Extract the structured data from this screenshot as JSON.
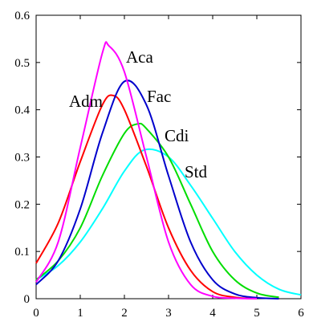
{
  "chart_data": {
    "type": "line",
    "title": "",
    "xlabel": "",
    "ylabel": "",
    "xlim": [
      0,
      6
    ],
    "ylim": [
      0,
      0.6
    ],
    "x_ticks": [
      "0",
      "1",
      "2",
      "3",
      "4",
      "5",
      "6"
    ],
    "y_ticks": [
      "0",
      "0.1",
      "0.2",
      "0.3",
      "0.4",
      "0.5",
      "0.6"
    ],
    "grid": false,
    "legend": "none",
    "series": [
      {
        "name": "Aca",
        "color": "#ff00ff",
        "x": [
          0,
          0.5,
          1,
          1.5,
          1.65,
          2,
          2.5,
          3,
          3.5,
          4,
          4.5,
          5
        ],
        "y": [
          0.035,
          0.12,
          0.32,
          0.52,
          0.535,
          0.48,
          0.3,
          0.12,
          0.03,
          0.005,
          0.001,
          0
        ]
      },
      {
        "name": "Adm",
        "color": "#ff0000",
        "x": [
          0,
          0.5,
          1,
          1.5,
          1.75,
          2,
          2.5,
          3,
          3.5,
          4,
          4.5,
          5
        ],
        "y": [
          0.075,
          0.16,
          0.29,
          0.41,
          0.43,
          0.4,
          0.28,
          0.15,
          0.06,
          0.015,
          0.003,
          0
        ]
      },
      {
        "name": "Fac",
        "color": "#0000cc",
        "x": [
          0,
          0.5,
          1,
          1.5,
          2,
          2.5,
          3,
          3.5,
          4,
          4.5,
          5,
          5.5
        ],
        "y": [
          0.03,
          0.08,
          0.19,
          0.35,
          0.46,
          0.41,
          0.26,
          0.12,
          0.04,
          0.01,
          0.002,
          0
        ]
      },
      {
        "name": "Cdi",
        "color": "#00dd00",
        "x": [
          0,
          0.5,
          1,
          1.5,
          2,
          2.3,
          2.5,
          3,
          3.5,
          4,
          4.5,
          5,
          5.5
        ],
        "y": [
          0.04,
          0.08,
          0.15,
          0.26,
          0.35,
          0.37,
          0.36,
          0.3,
          0.2,
          0.1,
          0.04,
          0.012,
          0.003
        ]
      },
      {
        "name": "Std",
        "color": "#00ffff",
        "x": [
          0,
          0.5,
          1,
          1.5,
          2,
          2.45,
          3,
          3.5,
          4,
          4.5,
          5,
          5.5,
          6
        ],
        "y": [
          0.04,
          0.07,
          0.12,
          0.19,
          0.27,
          0.315,
          0.3,
          0.24,
          0.17,
          0.1,
          0.05,
          0.02,
          0.008
        ]
      }
    ]
  }
}
